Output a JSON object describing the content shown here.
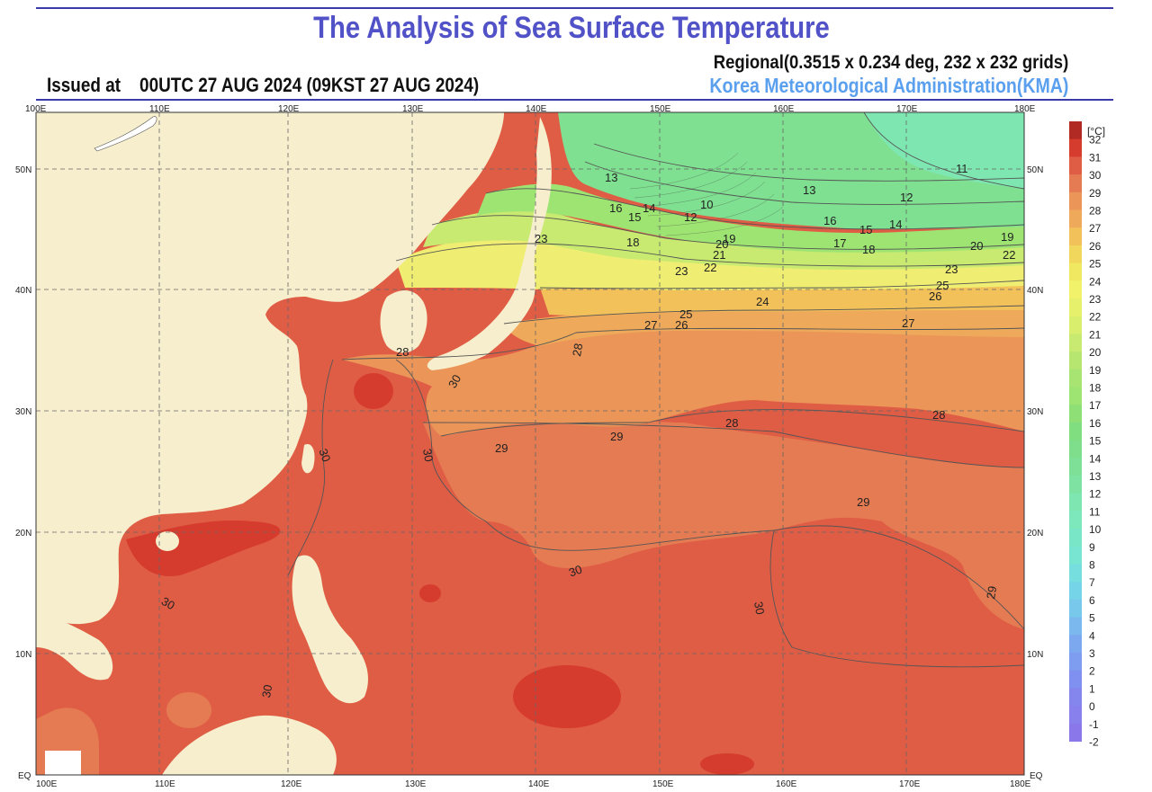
{
  "header": {
    "title": "The Analysis of Sea Surface Temperature",
    "regional": "Regional(0.3515 x 0.234 deg, 232 x 232 grids)",
    "issued_label": "Issued at",
    "issued_time": "00UTC 27 AUG 2024 (09KST 27 AUG 2024)",
    "agency": "Korea Meteorological Administration(KMA)"
  },
  "map": {
    "lon_labels": [
      "100E",
      "110E",
      "120E",
      "130E",
      "140E",
      "150E",
      "160E",
      "170E",
      "180E"
    ],
    "lat_labels": [
      "50N",
      "40N",
      "30N",
      "20N",
      "10N",
      "EQ"
    ],
    "contour_labels": [
      "13",
      "13",
      "12",
      "11",
      "16",
      "15",
      "14",
      "12",
      "10",
      "16",
      "15",
      "14",
      "23",
      "18",
      "20",
      "19",
      "21",
      "17",
      "18",
      "20",
      "19",
      "22",
      "23",
      "22",
      "23",
      "25",
      "26",
      "24",
      "25",
      "27",
      "26",
      "27",
      "28",
      "28",
      "28",
      "28",
      "29",
      "29",
      "29",
      "30",
      "30",
      "30",
      "30",
      "30",
      "30",
      "30",
      "29"
    ],
    "colors": {
      "land": "#f6eecc",
      "sea_30": "#e05d45",
      "sea_31": "#d63c2e",
      "sea_29": "#e57b52",
      "sea_28": "#eb9558",
      "sea_27": "#eeaa5a",
      "sea_26": "#f3c15a",
      "sea_25": "#f1d85c",
      "sea_23": "#efee72",
      "sea_20": "#c8ea70",
      "sea_17": "#9ee472",
      "sea_14": "#7ee090",
      "sea_11": "#7ee6b0"
    }
  },
  "legend": {
    "unit": "[°C]",
    "ticks": [
      "32",
      "31",
      "30",
      "29",
      "28",
      "27",
      "26",
      "25",
      "24",
      "23",
      "22",
      "21",
      "20",
      "19",
      "18",
      "17",
      "16",
      "15",
      "14",
      "13",
      "12",
      "11",
      "10",
      "9",
      "8",
      "7",
      "6",
      "5",
      "4",
      "3",
      "2",
      "1",
      "0",
      "-1",
      "-2"
    ],
    "swatch_colors": [
      "#b22a24",
      "#d63c2e",
      "#e05d45",
      "#e57b52",
      "#eb9558",
      "#eeaa5a",
      "#f3c15a",
      "#f1d85c",
      "#efe860",
      "#f2f26a",
      "#e6f06a",
      "#d8ee6c",
      "#c8ea70",
      "#b6e670",
      "#a8e472",
      "#9ee472",
      "#8ee076",
      "#80de80",
      "#7ede8c",
      "#7ee096",
      "#7ee2a2",
      "#7ee6b0",
      "#7ce8bc",
      "#7ae6c8",
      "#78e4d2",
      "#76dede",
      "#76d4e8",
      "#78c8ec",
      "#7ab8ee",
      "#7ca8f0",
      "#7e9cf0",
      "#8090f0",
      "#8486ee",
      "#8880ec",
      "#8a78ea"
    ]
  }
}
